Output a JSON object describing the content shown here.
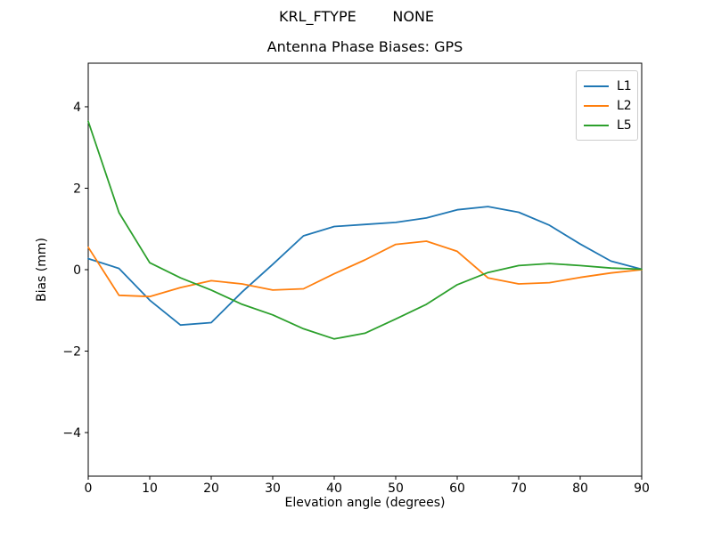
{
  "figure": {
    "suptitle": "KRL_FTYPE        NONE",
    "background": "#ffffff",
    "spine_color": "#000000"
  },
  "chart_data": {
    "type": "line",
    "title": "Antenna Phase Biases: GPS",
    "xlabel": "Elevation angle (degrees)",
    "ylabel": "Bias (mm)",
    "xlim": [
      0,
      90
    ],
    "ylim": [
      -5.07,
      5.07
    ],
    "xticks": [
      0,
      10,
      20,
      30,
      40,
      50,
      60,
      70,
      80,
      90
    ],
    "yticks": [
      -4,
      -2,
      0,
      2,
      4
    ],
    "ytick_labels": [
      "−4",
      "−2",
      "0",
      "2",
      "4"
    ],
    "grid": false,
    "legend_position": "upper right",
    "legend_border_color": "#cccccc",
    "x": [
      0,
      5,
      10,
      15,
      20,
      25,
      30,
      35,
      40,
      45,
      50,
      55,
      60,
      65,
      70,
      75,
      80,
      85,
      90
    ],
    "series": [
      {
        "name": "L1",
        "color": "#1f77b4",
        "values": [
          0.27,
          0.03,
          -0.75,
          -1.36,
          -1.3,
          -0.55,
          0.13,
          0.83,
          1.06,
          1.11,
          1.16,
          1.27,
          1.47,
          1.55,
          1.41,
          1.09,
          0.63,
          0.21,
          0.01
        ]
      },
      {
        "name": "L2",
        "color": "#ff7f0e",
        "values": [
          0.55,
          -0.63,
          -0.66,
          -0.44,
          -0.27,
          -0.35,
          -0.5,
          -0.47,
          -0.1,
          0.24,
          0.62,
          0.7,
          0.45,
          -0.2,
          -0.35,
          -0.32,
          -0.19,
          -0.08,
          0.0
        ]
      },
      {
        "name": "L5",
        "color": "#2ca02c",
        "values": [
          3.64,
          1.4,
          0.17,
          -0.2,
          -0.5,
          -0.85,
          -1.11,
          -1.45,
          -1.7,
          -1.56,
          -1.21,
          -0.85,
          -0.37,
          -0.07,
          0.1,
          0.15,
          0.1,
          0.04,
          0.01
        ]
      }
    ]
  }
}
